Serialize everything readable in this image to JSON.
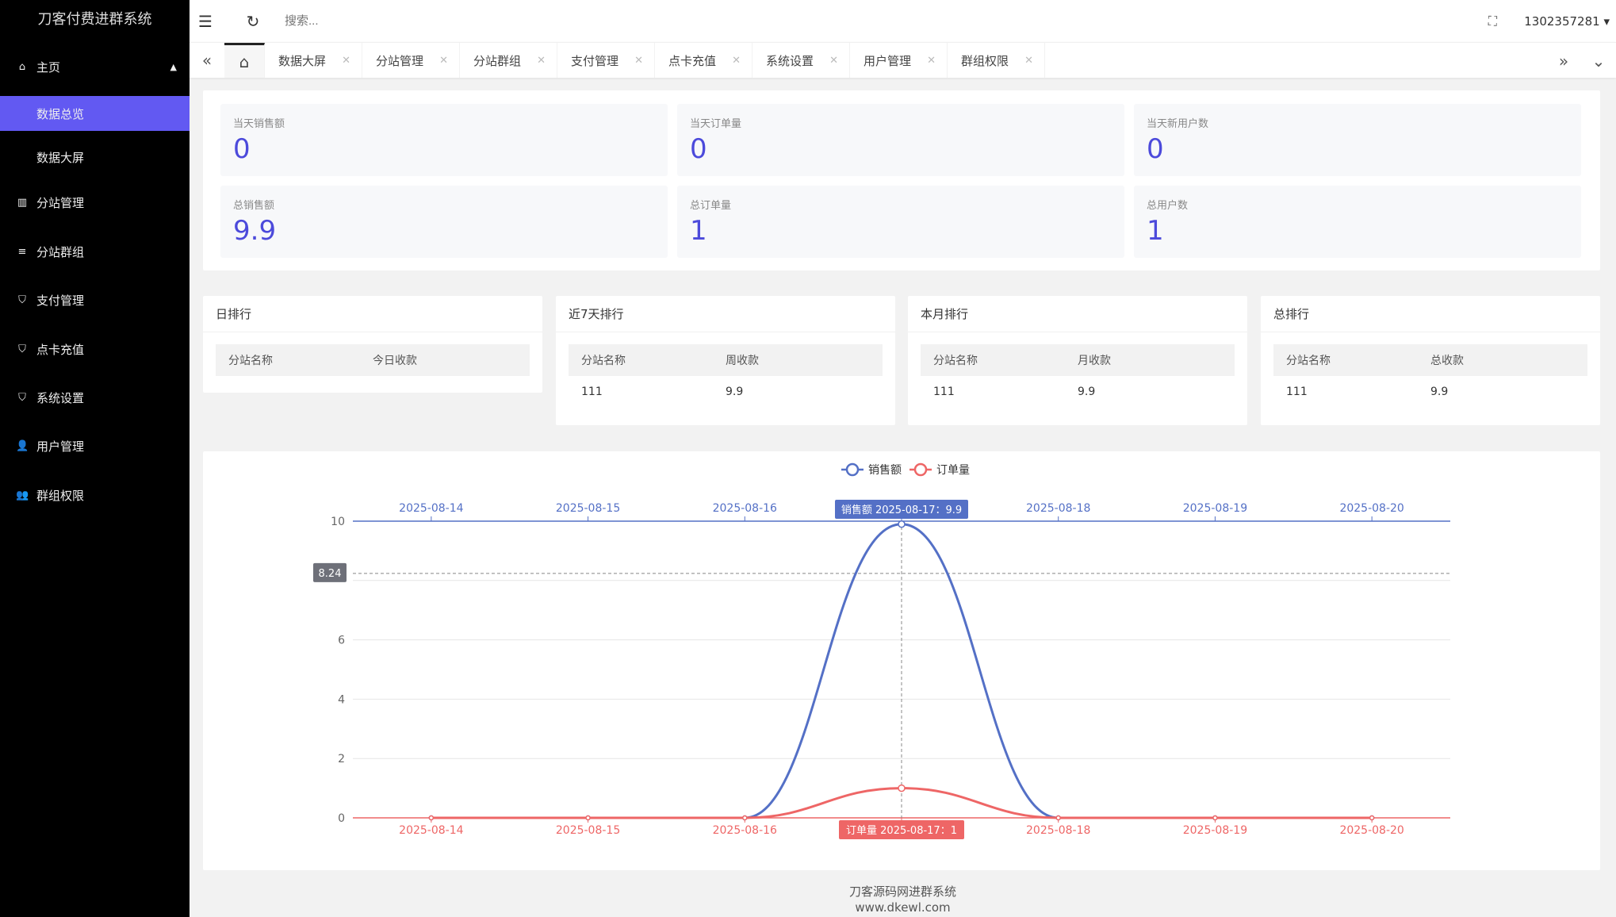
{
  "app": {
    "title": "刀客付费进群系统"
  },
  "sidebar": {
    "items": [
      {
        "label": "主页",
        "icon": "home-icon"
      },
      {
        "label": "数据总览",
        "icon": "",
        "active": true
      },
      {
        "label": "数据大屏",
        "icon": ""
      },
      {
        "label": "分站管理",
        "icon": "columns-icon"
      },
      {
        "label": "分站群组",
        "icon": "sliders-icon"
      },
      {
        "label": "支付管理",
        "icon": "shield-icon"
      },
      {
        "label": "点卡充值",
        "icon": "shield-icon"
      },
      {
        "label": "系统设置",
        "icon": "shield-icon"
      },
      {
        "label": "用户管理",
        "icon": "user-icon"
      },
      {
        "label": "群组权限",
        "icon": "users-icon"
      }
    ]
  },
  "header": {
    "search_placeholder": "搜索...",
    "user": "1302357281"
  },
  "tabs": [
    "数据大屏",
    "分站管理",
    "分站群组",
    "支付管理",
    "点卡充值",
    "系统设置",
    "用户管理",
    "群组权限"
  ],
  "stats": [
    {
      "label": "当天销售额",
      "value": "0"
    },
    {
      "label": "当天订单量",
      "value": "0"
    },
    {
      "label": "当天新用户数",
      "value": "0"
    },
    {
      "label": "总销售额",
      "value": "9.9"
    },
    {
      "label": "总订单量",
      "value": "1"
    },
    {
      "label": "总用户数",
      "value": "1"
    }
  ],
  "rankings": [
    {
      "title": "日排行",
      "col1": "分站名称",
      "col2": "今日收款",
      "rows": []
    },
    {
      "title": "近7天排行",
      "col1": "分站名称",
      "col2": "周收款",
      "rows": [
        [
          "111",
          "9.9"
        ]
      ]
    },
    {
      "title": "本月排行",
      "col1": "分站名称",
      "col2": "月收款",
      "rows": [
        [
          "111",
          "9.9"
        ]
      ]
    },
    {
      "title": "总排行",
      "col1": "分站名称",
      "col2": "总收款",
      "rows": [
        [
          "111",
          "9.9"
        ]
      ]
    }
  ],
  "chart_data": {
    "type": "line",
    "smooth": true,
    "categories": [
      "2025-08-14",
      "2025-08-15",
      "2025-08-16",
      "2025-08-17",
      "2025-08-18",
      "2025-08-19",
      "2025-08-20"
    ],
    "series": [
      {
        "name": "销售额",
        "values": [
          0,
          0,
          0,
          9.9,
          0,
          0,
          0
        ],
        "color": "#5470c6",
        "axis": "top"
      },
      {
        "name": "订单量",
        "values": [
          0,
          0,
          0,
          1,
          0,
          0,
          0
        ],
        "color": "#ee6666",
        "axis": "bottom"
      }
    ],
    "ylim": [
      0,
      10
    ],
    "yticks": [
      0,
      2,
      4,
      6,
      8,
      10
    ],
    "grid": true,
    "legend": "top-center",
    "tooltip": {
      "top": "销售额  2025-08-17：9.9",
      "bottom": "订单量  2025-08-17：1",
      "y_pointer": "8.24"
    }
  },
  "footer": {
    "line1": "刀客源码网进群系统",
    "line2": "www.dkewl.com"
  }
}
